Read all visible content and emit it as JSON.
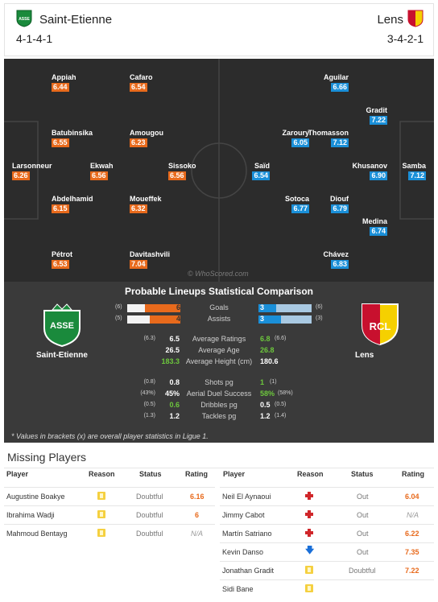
{
  "header": {
    "home": {
      "name": "Saint-Etienne",
      "formation": "4-1-4-1"
    },
    "away": {
      "name": "Lens",
      "formation": "3-4-2-1"
    }
  },
  "pitch": {
    "watermark": "© WhoScored.com",
    "home_players": [
      {
        "name": "Appiah",
        "rating": "6.44"
      },
      {
        "name": "Cafaro",
        "rating": "6.54"
      },
      {
        "name": "Batubinsika",
        "rating": "6.55"
      },
      {
        "name": "Amougou",
        "rating": "6.23"
      },
      {
        "name": "Larsonneur",
        "rating": "6.26"
      },
      {
        "name": "Ekwah",
        "rating": "6.56"
      },
      {
        "name": "Sissoko",
        "rating": "6.56"
      },
      {
        "name": "Abdelhamid",
        "rating": "6.15"
      },
      {
        "name": "Moueffek",
        "rating": "6.32"
      },
      {
        "name": "Pétrot",
        "rating": "6.53"
      },
      {
        "name": "Davitashvili",
        "rating": "7.04"
      }
    ],
    "away_players": [
      {
        "name": "Aguilar",
        "rating": "6.66"
      },
      {
        "name": "Gradit",
        "rating": "7.22"
      },
      {
        "name": "Zaroury",
        "rating": "6.05"
      },
      {
        "name": "Thomasson",
        "rating": "7.12"
      },
      {
        "name": "Saïd",
        "rating": "6.54"
      },
      {
        "name": "Khusanov",
        "rating": "6.90"
      },
      {
        "name": "Samba",
        "rating": "7.12"
      },
      {
        "name": "Sotoca",
        "rating": "6.77"
      },
      {
        "name": "Diouf",
        "rating": "6.79"
      },
      {
        "name": "Medina",
        "rating": "6.74"
      },
      {
        "name": "Chávez",
        "rating": "6.83"
      }
    ]
  },
  "comparison": {
    "title": "Probable Lineups Statistical Comparison",
    "home_team": "Saint-Etienne",
    "away_team": "Lens",
    "home_crest_text": "ASSE",
    "away_crest_text": "RCL",
    "bars": [
      {
        "label": "Goals",
        "home": "6",
        "home_b": "(6)",
        "away": "3",
        "away_b": "(6)",
        "home_frac": 0.667,
        "away_frac": 0.333
      },
      {
        "label": "Assists",
        "home": "4",
        "home_b": "(5)",
        "away": "3",
        "away_b": "(3)",
        "home_frac": 0.571,
        "away_frac": 0.429
      }
    ],
    "stats1": [
      {
        "label": "Average Ratings",
        "home": "6.5",
        "home_b": "(6.3)",
        "away": "6.8",
        "away_b": "(6.6)",
        "hi": "away"
      },
      {
        "label": "Average Age",
        "home": "26.5",
        "home_b": "",
        "away": "26.8",
        "away_b": "",
        "hi": "away"
      },
      {
        "label": "Average Height (cm)",
        "home": "183.3",
        "home_b": "",
        "away": "180.6",
        "away_b": "",
        "hi": "home"
      }
    ],
    "stats2": [
      {
        "label": "Shots pg",
        "home": "0.8",
        "home_b": "(0.8)",
        "away": "1",
        "away_b": "(1)",
        "hi": "away"
      },
      {
        "label": "Aerial Duel Success",
        "home": "45%",
        "home_b": "(43%)",
        "away": "58%",
        "away_b": "(58%)",
        "hi": "away"
      },
      {
        "label": "Dribbles pg",
        "home": "0.6",
        "home_b": "(0.5)",
        "away": "0.5",
        "away_b": "(0.5)",
        "hi": "home"
      },
      {
        "label": "Tackles pg",
        "home": "1.2",
        "home_b": "(1.3)",
        "away": "1.2",
        "away_b": "(1.4)",
        "hi": "none"
      }
    ],
    "note": "* Values in brackets (x) are overall player statistics in Ligue 1."
  },
  "missing": {
    "title": "Missing Players",
    "headers": {
      "player": "Player",
      "reason": "Reason",
      "status": "Status",
      "rating": "Rating"
    },
    "home": [
      {
        "player": "Augustine Boakye",
        "reason": "doubt",
        "status": "Doubtful",
        "rating": "6.16"
      },
      {
        "player": "Ibrahima Wadji",
        "reason": "doubt",
        "status": "Doubtful",
        "rating": "6"
      },
      {
        "player": "Mahmoud Bentayg",
        "reason": "doubt",
        "status": "Doubtful",
        "rating": "N/A"
      }
    ],
    "away": [
      {
        "player": "Neil El Aynaoui",
        "reason": "injury",
        "status": "Out",
        "rating": "6.04"
      },
      {
        "player": "Jimmy Cabot",
        "reason": "injury",
        "status": "Out",
        "rating": "N/A"
      },
      {
        "player": "Martín Satriano",
        "reason": "injury",
        "status": "Out",
        "rating": "6.22"
      },
      {
        "player": "Kevin Danso",
        "reason": "arrow",
        "status": "Out",
        "rating": "7.35"
      },
      {
        "player": "Jonathan Gradit",
        "reason": "doubt",
        "status": "Doubtful",
        "rating": "7.22"
      },
      {
        "player": "Sidi Bane",
        "reason": "doubt",
        "status": "",
        "rating": ""
      }
    ]
  },
  "colors": {
    "home": "#e86a1c",
    "away": "#1a8fd8",
    "pitch": "#2c2c2c",
    "panel": "#3a3a3a",
    "highlight": "#6dc73d"
  }
}
